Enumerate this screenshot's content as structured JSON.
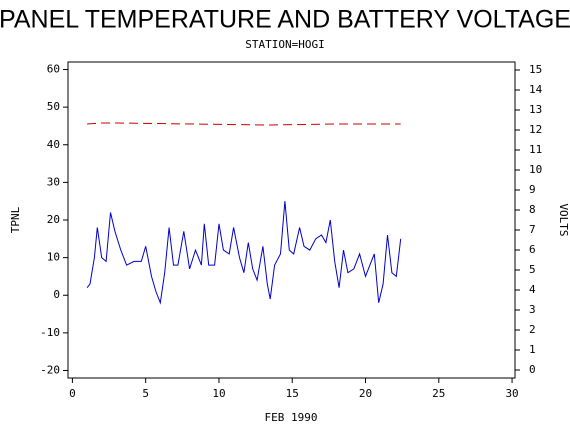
{
  "chart_data": {
    "type": "line",
    "title": "PANEL TEMPERATURE AND BATTERY VOLTAGE",
    "subtitle": "STATION=HOGI",
    "x_label": "FEB 1990",
    "y_label": "TPNL",
    "y2_label": "VOLTS",
    "xlim": [
      -0.3,
      30.2
    ],
    "xticks": [
      0,
      5,
      10,
      15,
      20,
      25,
      30
    ],
    "ylim": [
      -22,
      62
    ],
    "yticks": [
      -20,
      -10,
      0,
      10,
      20,
      30,
      40,
      50,
      60
    ],
    "y2lim": [
      -0.4,
      15.4
    ],
    "y2ticks": [
      0,
      1,
      2,
      3,
      4,
      5,
      6,
      7,
      8,
      9,
      10,
      11,
      12,
      13,
      14,
      15
    ],
    "series": [
      {
        "name": "TPNL",
        "color": "#0000cc",
        "x": [
          1.0,
          1.2,
          1.5,
          1.7,
          2.0,
          2.3,
          2.6,
          2.9,
          3.3,
          3.7,
          4.2,
          4.7,
          5.0,
          5.4,
          5.7,
          6.0,
          6.3,
          6.6,
          6.9,
          7.2,
          7.6,
          8.0,
          8.4,
          8.8,
          9.0,
          9.3,
          9.7,
          10.0,
          10.3,
          10.7,
          11.0,
          11.4,
          11.7,
          12.0,
          12.3,
          12.6,
          13.0,
          13.3,
          13.5,
          13.8,
          14.2,
          14.5,
          14.8,
          15.1,
          15.5,
          15.8,
          16.2,
          16.6,
          17.0,
          17.3,
          17.6,
          17.9,
          18.2,
          18.5,
          18.8,
          19.2,
          19.6,
          20.0,
          20.3,
          20.6,
          20.9,
          21.2,
          21.5,
          21.8,
          22.1,
          22.4
        ],
        "values": [
          2,
          3,
          10,
          18,
          10,
          9,
          22,
          17,
          12,
          8,
          9,
          9,
          13,
          5,
          1,
          -2,
          6,
          18,
          8,
          8,
          17,
          7,
          12,
          8,
          19,
          8,
          8,
          19,
          12,
          11,
          18,
          10,
          6,
          14,
          7,
          4,
          13,
          3,
          -1,
          8,
          11,
          25,
          12,
          11,
          18,
          13,
          12,
          15,
          16,
          14,
          20,
          9,
          2,
          12,
          6,
          7,
          11,
          5,
          8,
          11,
          -2,
          3,
          16,
          6,
          5,
          15
        ]
      },
      {
        "name": "VOLTS",
        "color": "#cc0000",
        "axis": "y2",
        "dashed": true,
        "x": [
          1.0,
          2.0,
          3.2,
          8.0,
          13.4,
          18.0,
          22.4
        ],
        "values": [
          12.3,
          12.35,
          12.35,
          12.3,
          12.25,
          12.3,
          12.3
        ]
      }
    ]
  }
}
